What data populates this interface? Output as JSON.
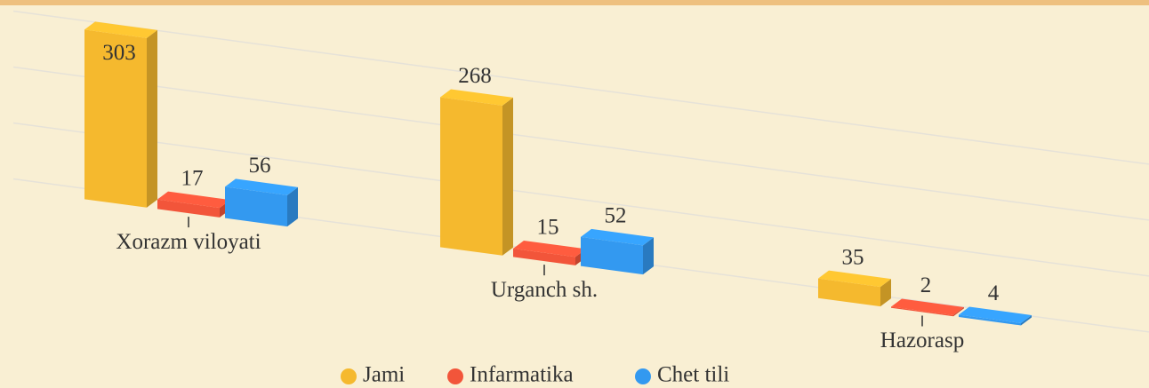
{
  "chart_data": {
    "type": "bar3d",
    "categories": [
      "Xorazm viloyati",
      "Urganch sh.",
      "Hazorasp"
    ],
    "series": [
      {
        "name": "Jami",
        "color": "#f5b92e",
        "values": [
          303,
          268,
          35
        ]
      },
      {
        "name": "Infarmatika",
        "color": "#f2553a",
        "values": [
          17,
          15,
          2
        ]
      },
      {
        "name": "Chet tili",
        "color": "#3399f0",
        "values": [
          56,
          52,
          4
        ]
      }
    ],
    "ylim": [
      0,
      320
    ],
    "yticks": [
      0,
      100,
      200,
      300
    ],
    "grid": true,
    "legend": "bottom"
  }
}
